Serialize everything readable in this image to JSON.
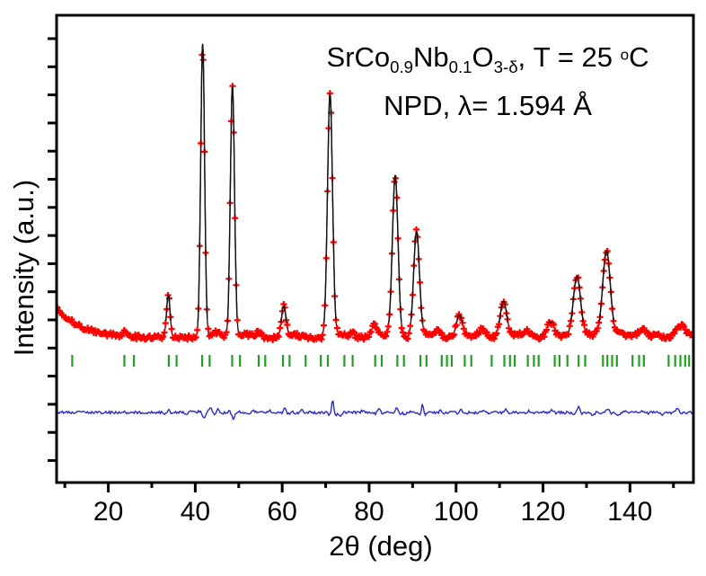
{
  "figure": {
    "title_line1": {
      "seg1": "SrCo",
      "sub1": "0.9",
      "seg2": "Nb",
      "sub2": "0.1",
      "seg3": "O",
      "sub3": "3-δ",
      "seg4": ", T = 25 ",
      "sup1": "o",
      "seg5": "C"
    },
    "title_line2": "NPD, λ= 1.594 Å",
    "xlabel": "2θ (deg)",
    "ylabel": "Intensity (a.u.)"
  },
  "chart_data": {
    "type": "scatter",
    "description": "Rietveld refinement profile of neutron powder diffraction data: observed points (red crosses), calculated pattern (black line), Bragg reflection tick marks (green), difference curve (blue)",
    "title": "SrCo0.9Nb0.1O3-δ, T = 25 °C",
    "subtitle": "NPD, λ= 1.594 Å",
    "xlabel": "2θ (deg)",
    "ylabel": "Intensity (a.u.)",
    "xlim": [
      8.1,
      154.6
    ],
    "x_ticks_major": [
      20,
      40,
      60,
      80,
      100,
      120,
      140
    ],
    "x_tick_minor_step": 10,
    "y_axis": {
      "labeled": false,
      "unlabeled_tick_count": 16,
      "units": "arbitrary"
    },
    "grid": false,
    "legend": false,
    "colors": {
      "observed": "#ff0000",
      "calculated": "#111111",
      "bragg": "#20a020",
      "difference": "#2a2ac8",
      "frame": "#000000"
    },
    "series": [
      {
        "name": "observed",
        "style": "plus-markers",
        "color": "#ff0000"
      },
      {
        "name": "calculated",
        "style": "solid-line",
        "color": "#111111"
      },
      {
        "name": "bragg_positions",
        "style": "vertical-ticks",
        "color": "#20a020"
      },
      {
        "name": "difference",
        "style": "solid-line",
        "color": "#2a2ac8"
      }
    ],
    "intensity_normalization": "strongest peak (2θ = 41.7°) = 1.0",
    "background_curve": {
      "amplitude": 0.105,
      "decay_deg": 5.5,
      "flat": 0.003
    },
    "peaks": [
      {
        "c": 23.6,
        "h": 0.018,
        "w": 0.37
      },
      {
        "c": 33.8,
        "h": 0.145,
        "w": 0.41
      },
      {
        "c": 41.7,
        "h": 1.0,
        "w": 0.45
      },
      {
        "c": 44.8,
        "h": 0.018,
        "w": 1.2
      },
      {
        "c": 48.55,
        "h": 0.855,
        "w": 0.48
      },
      {
        "c": 51.5,
        "h": 0.012,
        "w": 1.5
      },
      {
        "c": 54.6,
        "h": 0.02,
        "w": 0.51
      },
      {
        "c": 60.35,
        "h": 0.105,
        "w": 0.53
      },
      {
        "c": 63.0,
        "h": 0.01,
        "w": 1.5
      },
      {
        "c": 71.0,
        "h": 0.83,
        "w": 0.58
      },
      {
        "c": 73.5,
        "h": 0.015,
        "w": 1.2
      },
      {
        "c": 76.1,
        "h": 0.015,
        "w": 0.6
      },
      {
        "c": 81.2,
        "h": 0.042,
        "w": 0.63
      },
      {
        "c": 83.5,
        "h": 0.012,
        "w": 1.5
      },
      {
        "c": 86.0,
        "h": 0.55,
        "w": 0.65
      },
      {
        "c": 90.9,
        "h": 0.36,
        "w": 0.67
      },
      {
        "c": 93.5,
        "h": 0.012,
        "w": 1.5
      },
      {
        "c": 95.8,
        "h": 0.02,
        "w": 0.69
      },
      {
        "c": 100.75,
        "h": 0.075,
        "w": 0.71
      },
      {
        "c": 104.0,
        "h": 0.008,
        "w": 2.0
      },
      {
        "c": 106.0,
        "h": 0.025,
        "w": 0.74
      },
      {
        "c": 110.9,
        "h": 0.12,
        "w": 0.76
      },
      {
        "c": 113.5,
        "h": 0.01,
        "w": 2.0
      },
      {
        "c": 116.2,
        "h": 0.02,
        "w": 0.78
      },
      {
        "c": 121.7,
        "h": 0.05,
        "w": 0.81
      },
      {
        "c": 124.0,
        "h": 0.008,
        "w": 2.0
      },
      {
        "c": 127.8,
        "h": 0.205,
        "w": 0.84
      },
      {
        "c": 131.0,
        "h": 0.012,
        "w": 2.0
      },
      {
        "c": 134.6,
        "h": 0.29,
        "w": 0.87
      },
      {
        "c": 137.5,
        "h": 0.012,
        "w": 2.0
      },
      {
        "c": 142.8,
        "h": 0.028,
        "w": 0.9
      },
      {
        "c": 146.0,
        "h": 0.008,
        "w": 2.0
      },
      {
        "c": 151.5,
        "h": 0.035,
        "w": 0.94
      },
      {
        "c": 153.2,
        "h": 0.012,
        "w": 1.5
      }
    ],
    "bragg_ticks_2theta": [
      11.7,
      23.7,
      25.9,
      33.9,
      35.7,
      41.6,
      43.3,
      48.5,
      50.3,
      54.6,
      56.1,
      60.2,
      61.7,
      65.4,
      68.9,
      70.5,
      74.3,
      76.2,
      81.4,
      82.9,
      86.5,
      88.0,
      91.8,
      93.2,
      96.7,
      97.9,
      99.0,
      102.0,
      103.5,
      108.2,
      111.1,
      112.4,
      113.5,
      116.5,
      117.9,
      119.0,
      122.7,
      123.8,
      125.6,
      128.2,
      129.7,
      133.8,
      134.8,
      135.9,
      137.0,
      140.6,
      142.1,
      143.2,
      148.9,
      150.4,
      151.6,
      152.7,
      153.6
    ],
    "difference_features": [
      {
        "c": 33.9,
        "amp": 0.014,
        "w": 0.4
      },
      {
        "c": 38.0,
        "amp": -0.008,
        "w": 0.4
      },
      {
        "c": 41.9,
        "amp": -0.022,
        "w": 0.45
      },
      {
        "c": 43.6,
        "amp": 0.014,
        "w": 0.4
      },
      {
        "c": 45.3,
        "amp": 0.016,
        "w": 0.35
      },
      {
        "c": 48.8,
        "amp": -0.024,
        "w": 0.45
      },
      {
        "c": 53.5,
        "amp": 0.008,
        "w": 0.4
      },
      {
        "c": 57.2,
        "amp": 0.007,
        "w": 0.4
      },
      {
        "c": 60.6,
        "amp": 0.018,
        "w": 0.4
      },
      {
        "c": 64.5,
        "amp": 0.008,
        "w": 0.4
      },
      {
        "c": 71.6,
        "amp": 0.058,
        "w": 0.3
      },
      {
        "c": 73.4,
        "amp": -0.014,
        "w": 0.4
      },
      {
        "c": 78.5,
        "amp": 0.008,
        "w": 0.4
      },
      {
        "c": 82.3,
        "amp": 0.018,
        "w": 0.4
      },
      {
        "c": 86.3,
        "amp": 0.02,
        "w": 0.4
      },
      {
        "c": 88.3,
        "amp": -0.012,
        "w": 0.4
      },
      {
        "c": 92.3,
        "amp": 0.034,
        "w": 0.3
      },
      {
        "c": 96.5,
        "amp": 0.008,
        "w": 0.4
      },
      {
        "c": 101.2,
        "amp": 0.012,
        "w": 0.4
      },
      {
        "c": 106.3,
        "amp": 0.008,
        "w": 0.4
      },
      {
        "c": 111.5,
        "amp": 0.014,
        "w": 0.45
      },
      {
        "c": 116.8,
        "amp": 0.007,
        "w": 0.4
      },
      {
        "c": 122.0,
        "amp": 0.009,
        "w": 0.45
      },
      {
        "c": 128.2,
        "amp": 0.02,
        "w": 0.45
      },
      {
        "c": 131.5,
        "amp": -0.01,
        "w": 0.45
      },
      {
        "c": 134.9,
        "amp": 0.018,
        "w": 0.5
      },
      {
        "c": 137.5,
        "amp": -0.012,
        "w": 0.5
      },
      {
        "c": 143.0,
        "amp": 0.008,
        "w": 0.5
      },
      {
        "c": 147.5,
        "amp": -0.007,
        "w": 0.5
      },
      {
        "c": 150.9,
        "amp": 0.012,
        "w": 0.5
      }
    ],
    "baselines": {
      "observed": 0.0,
      "bragg_row_top": -0.055,
      "bragg_row_bottom": -0.095,
      "difference": -0.251
    },
    "noise": {
      "observed": 0.008,
      "difference": 0.0045
    }
  }
}
